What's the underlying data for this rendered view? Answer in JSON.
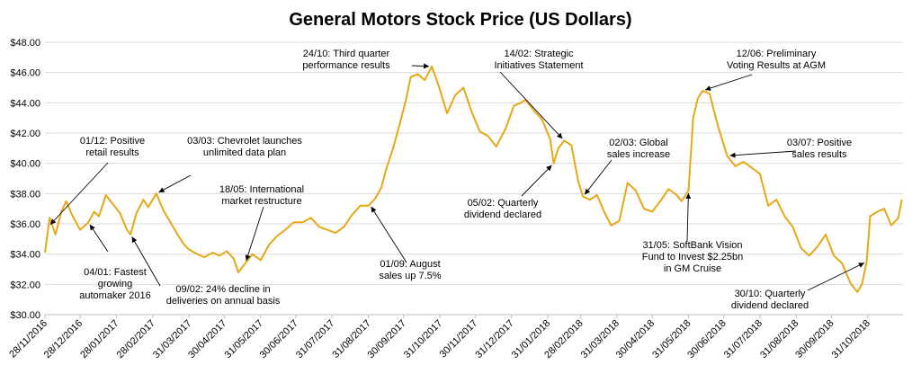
{
  "chart_data": {
    "type": "line",
    "title": "General Motors Stock Price (US Dollars)",
    "xlabel": "",
    "ylabel": "",
    "ylim": [
      30,
      48
    ],
    "grid": true,
    "legend": "none",
    "line_color": "#e6a817",
    "yticks": [
      "$30.00",
      "$32.00",
      "$34.00",
      "$36.00",
      "$38.00",
      "$40.00",
      "$42.00",
      "$44.00",
      "$46.00",
      "$48.00"
    ],
    "xticks": [
      "28/11/2016",
      "28/12/2016",
      "28/01/2017",
      "28/02/2017",
      "31/03/2017",
      "30/04/2017",
      "31/05/2017",
      "30/06/2017",
      "31/07/2017",
      "31/08/2017",
      "30/09/2017",
      "31/10/2017",
      "30/11/2017",
      "31/12/2017",
      "31/01/2018",
      "28/02/2018",
      "31/03/2018",
      "30/04/2018",
      "31/05/2018",
      "30/06/2018",
      "31/07/2018",
      "31/08/2018",
      "30/09/2018",
      "31/10/2018"
    ],
    "series": [
      {
        "x": [
          "2016-11-28",
          "2016-12-02",
          "2016-12-07",
          "2016-12-12",
          "2016-12-16",
          "2016-12-21",
          "2016-12-28",
          "2017-01-04",
          "2017-01-09",
          "2017-01-13",
          "2017-01-19",
          "2017-01-25",
          "2017-01-31",
          "2017-02-06",
          "2017-02-09",
          "2017-02-14",
          "2017-02-20",
          "2017-02-24",
          "2017-03-03",
          "2017-03-09",
          "2017-03-15",
          "2017-03-21",
          "2017-03-27",
          "2017-03-31",
          "2017-04-07",
          "2017-04-13",
          "2017-04-20",
          "2017-04-26",
          "2017-05-02",
          "2017-05-08",
          "2017-05-12",
          "2017-05-18",
          "2017-05-24",
          "2017-05-31",
          "2017-06-07",
          "2017-06-14",
          "2017-06-21",
          "2017-06-28",
          "2017-07-06",
          "2017-07-13",
          "2017-07-20",
          "2017-07-27",
          "2017-08-03",
          "2017-08-10",
          "2017-08-17",
          "2017-08-24",
          "2017-08-31",
          "2017-09-06",
          "2017-09-11",
          "2017-09-15",
          "2017-09-21",
          "2017-09-27",
          "2017-10-02",
          "2017-10-06",
          "2017-10-12",
          "2017-10-18",
          "2017-10-24",
          "2017-10-30",
          "2017-11-06",
          "2017-11-13",
          "2017-11-20",
          "2017-11-27",
          "2017-12-04",
          "2017-12-11",
          "2017-12-18",
          "2017-12-26",
          "2018-01-02",
          "2018-01-08",
          "2018-01-12",
          "2018-01-19",
          "2018-01-26",
          "2018-02-02",
          "2018-02-05",
          "2018-02-09",
          "2018-02-14",
          "2018-02-20",
          "2018-02-26",
          "2018-03-02",
          "2018-03-08",
          "2018-03-14",
          "2018-03-20",
          "2018-03-26",
          "2018-04-02",
          "2018-04-09",
          "2018-04-16",
          "2018-04-23",
          "2018-04-30",
          "2018-05-07",
          "2018-05-14",
          "2018-05-21",
          "2018-05-25",
          "2018-05-31",
          "2018-06-04",
          "2018-06-08",
          "2018-06-12",
          "2018-06-18",
          "2018-06-25",
          "2018-07-03",
          "2018-07-10",
          "2018-07-17",
          "2018-07-24",
          "2018-07-31",
          "2018-08-07",
          "2018-08-14",
          "2018-08-21",
          "2018-08-28",
          "2018-09-04",
          "2018-09-11",
          "2018-09-18",
          "2018-09-25",
          "2018-10-02",
          "2018-10-09",
          "2018-10-16",
          "2018-10-22",
          "2018-10-26",
          "2018-10-30",
          "2018-11-02",
          "2018-11-08",
          "2018-11-14",
          "2018-11-20",
          "2018-11-26",
          "2018-11-29"
        ],
        "values": [
          34.1,
          36.4,
          35.3,
          36.8,
          37.5,
          36.6,
          35.6,
          36.1,
          36.8,
          36.5,
          37.9,
          37.3,
          36.7,
          35.6,
          35.3,
          36.7,
          37.6,
          37.1,
          38.0,
          36.9,
          36.1,
          35.3,
          34.6,
          34.3,
          34.0,
          33.8,
          34.1,
          33.9,
          34.2,
          33.7,
          32.8,
          33.4,
          34.0,
          33.6,
          34.6,
          35.2,
          35.6,
          36.1,
          36.1,
          36.4,
          35.8,
          35.6,
          35.4,
          35.8,
          36.6,
          37.2,
          37.2,
          37.7,
          38.4,
          39.6,
          41.0,
          42.7,
          44.2,
          45.7,
          45.9,
          45.5,
          46.4,
          45.1,
          43.3,
          44.5,
          45.0,
          43.4,
          42.1,
          41.8,
          41.1,
          42.3,
          43.8,
          44.0,
          44.2,
          43.5,
          42.9,
          41.6,
          40.0,
          41.0,
          41.5,
          41.2,
          38.8,
          37.8,
          37.6,
          37.9,
          36.8,
          35.9,
          36.2,
          38.7,
          38.2,
          37.0,
          36.8,
          37.5,
          38.3,
          37.9,
          37.5,
          38.2,
          43.0,
          44.3,
          44.8,
          44.6,
          42.5,
          40.5,
          39.8,
          40.1,
          39.7,
          39.3,
          37.2,
          37.6,
          36.5,
          35.8,
          34.4,
          33.9,
          34.5,
          35.3,
          33.9,
          33.4,
          32.1,
          31.5,
          32.0,
          33.5,
          36.5,
          36.8,
          37.0,
          35.9,
          36.4,
          37.6
        ]
      }
    ],
    "annotations": [
      {
        "date": "2016-12-01",
        "lines": [
          "01/12: Positive",
          "retail results"
        ]
      },
      {
        "date": "2017-01-04",
        "lines": [
          "04/01: Fastest",
          "growing",
          "automaker 2016"
        ]
      },
      {
        "date": "2017-02-09",
        "lines": [
          "09/02: 24% decline in",
          "deliveries on annual basis"
        ]
      },
      {
        "date": "2017-03-03",
        "lines": [
          "03/03: Chevrolet  launches",
          "unlimited data plan"
        ]
      },
      {
        "date": "2017-05-18",
        "lines": [
          "18/05: International",
          "market restructure"
        ]
      },
      {
        "date": "2017-09-01",
        "lines": [
          "01/09: August",
          "sales up 7.5%"
        ]
      },
      {
        "date": "2017-10-24",
        "lines": [
          "24/10: Third quarter",
          "performance results"
        ]
      },
      {
        "date": "2018-02-14",
        "lines": [
          "14/02: Strategic",
          "Initiatives Statement"
        ]
      },
      {
        "date": "2018-02-05",
        "lines": [
          "05/02: Quarterly",
          "dividend declared"
        ]
      },
      {
        "date": "2018-03-02",
        "lines": [
          "02/03: Global",
          "sales increase"
        ]
      },
      {
        "date": "2018-05-31",
        "lines": [
          "31/05: SoftBank Vision",
          "Fund to Invest $2.25bn",
          "in GM Cruise"
        ]
      },
      {
        "date": "2018-06-12",
        "lines": [
          "12/06: Preliminary",
          "Voting Results at AGM"
        ]
      },
      {
        "date": "2018-07-03",
        "lines": [
          "03/07: Positive",
          "sales results"
        ]
      },
      {
        "date": "2018-10-30",
        "lines": [
          "30/10: Quarterly",
          "dividend declared"
        ]
      }
    ]
  }
}
